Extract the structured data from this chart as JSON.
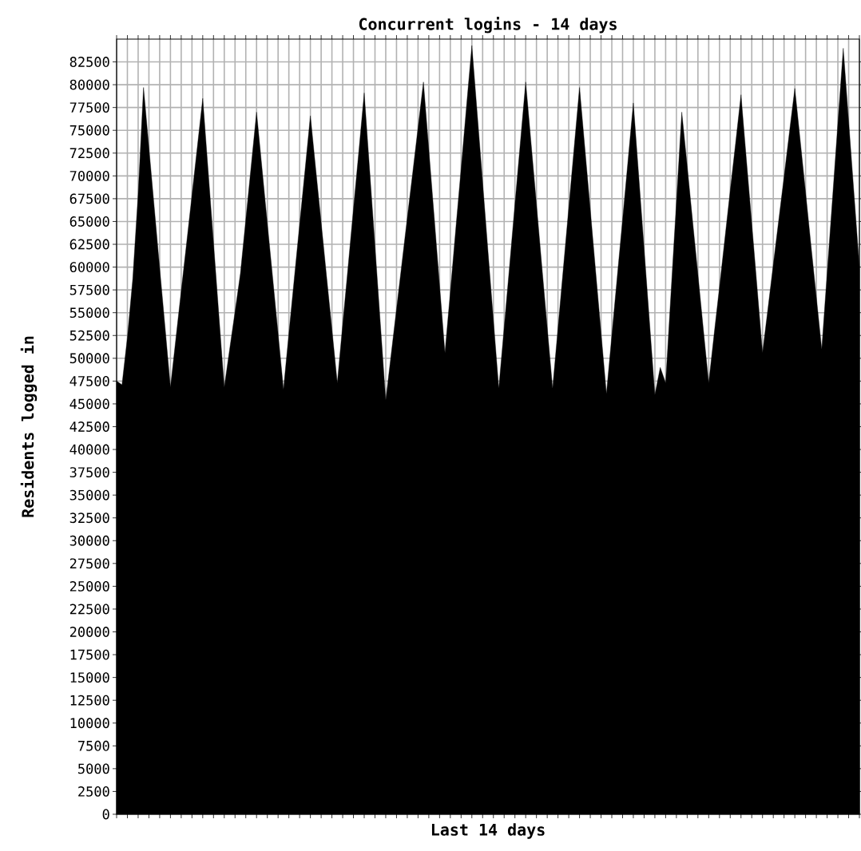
{
  "chart_data": {
    "type": "area",
    "title": "Concurrent logins - 14 days",
    "xlabel": "Last 14 days",
    "ylabel": "Residents logged in",
    "categories": [
      null,
      null,
      null,
      null,
      null,
      null,
      null,
      null,
      null,
      null,
      null,
      null,
      null,
      null,
      null,
      null,
      null,
      null,
      null,
      null,
      null,
      null,
      null,
      null,
      null,
      null,
      null,
      null,
      null,
      null,
      null,
      null,
      null,
      null,
      null,
      null,
      null,
      null,
      null,
      null,
      null,
      null,
      null,
      null,
      null,
      null,
      null,
      null,
      null,
      null,
      null,
      null,
      null,
      null,
      null,
      null,
      null,
      null,
      null,
      null,
      null,
      null,
      null,
      null,
      null,
      null,
      null,
      null,
      null,
      null,
      null,
      null,
      null,
      null,
      null,
      null,
      null,
      null,
      null,
      null,
      null,
      null,
      null,
      null,
      null,
      null,
      null,
      null,
      null,
      null,
      null,
      null,
      null,
      null,
      null,
      null,
      null,
      null,
      null,
      null,
      null,
      null,
      null,
      null,
      null,
      null,
      null,
      null,
      null,
      null,
      null,
      null,
      null,
      null,
      null,
      null,
      null,
      null,
      null,
      null,
      null,
      null,
      null,
      null,
      null,
      null,
      null,
      null,
      null,
      null,
      null,
      null,
      null,
      null,
      null,
      null,
      null,
      null,
      null
    ],
    "values": [
      47500,
      47100,
      52300,
      58700,
      68000,
      79700,
      73100,
      66500,
      59900,
      53400,
      46800,
      52100,
      57400,
      62600,
      67900,
      73200,
      78500,
      70600,
      62700,
      54700,
      46800,
      51000,
      55100,
      59300,
      65200,
      71100,
      77000,
      70900,
      64800,
      58800,
      52700,
      46600,
      52700,
      58700,
      64700,
      70600,
      76600,
      70700,
      64900,
      59000,
      53200,
      47300,
      53700,
      60000,
      66400,
      72700,
      79100,
      70700,
      62300,
      53800,
      45400,
      50400,
      55400,
      60400,
      65400,
      70300,
      75300,
      80300,
      72900,
      65500,
      58000,
      50600,
      57300,
      64100,
      70800,
      77600,
      84300,
      76800,
      69300,
      61700,
      54200,
      46700,
      53400,
      60100,
      66900,
      73600,
      80300,
      73600,
      66900,
      60100,
      53400,
      46700,
      53300,
      59900,
      66500,
      73100,
      79700,
      73000,
      66300,
      59500,
      52800,
      46100,
      52500,
      58900,
      65200,
      71600,
      78000,
      70000,
      62000,
      54000,
      46000,
      49000,
      47300,
      57200,
      67100,
      77000,
      71100,
      65100,
      59200,
      53200,
      47300,
      52600,
      57800,
      63100,
      68400,
      73600,
      78900,
      71800,
      64800,
      57700,
      50600,
      55400,
      60300,
      65100,
      69900,
      74800,
      79600,
      73900,
      68200,
      62400,
      56700,
      51000,
      59300,
      67500,
      75800,
      84000,
      76000,
      68000,
      60000
    ],
    "color": "#000000",
    "ylim": [
      0,
      85000
    ],
    "yticks": [
      0,
      2500,
      5000,
      7500,
      10000,
      12500,
      15000,
      17500,
      20000,
      22500,
      25000,
      27500,
      30000,
      32500,
      35000,
      37500,
      40000,
      42500,
      45000,
      47500,
      50000,
      52500,
      55000,
      57500,
      60000,
      62500,
      65000,
      67500,
      70000,
      72500,
      75000,
      77500,
      80000,
      82500
    ],
    "grid": true
  }
}
